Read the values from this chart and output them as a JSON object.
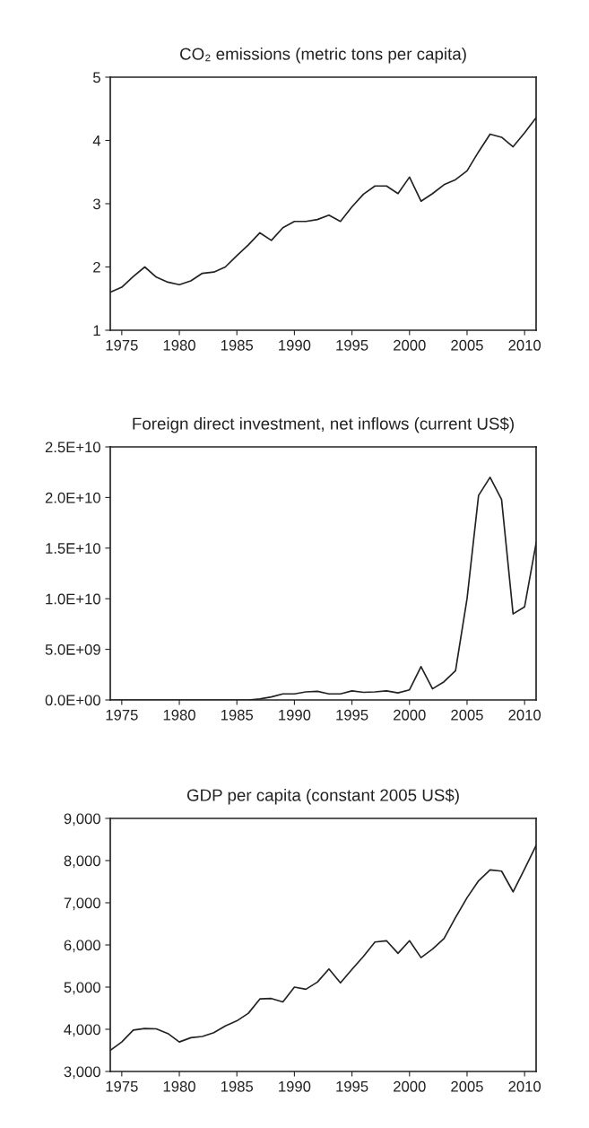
{
  "chart_data": [
    {
      "type": "line",
      "title": "CO₂ emissions (metric tons per capita)",
      "x": [
        1974,
        1975,
        1976,
        1977,
        1978,
        1979,
        1980,
        1981,
        1982,
        1983,
        1984,
        1985,
        1986,
        1987,
        1988,
        1989,
        1990,
        1991,
        1992,
        1993,
        1994,
        1995,
        1996,
        1997,
        1998,
        1999,
        2000,
        2001,
        2002,
        2003,
        2004,
        2005,
        2006,
        2007,
        2008,
        2009,
        2010,
        2011
      ],
      "series": [
        {
          "color": "#222222",
          "values": [
            1.6,
            1.68,
            1.85,
            2.0,
            1.84,
            1.76,
            1.72,
            1.78,
            1.9,
            1.92,
            2.0,
            2.18,
            2.35,
            2.54,
            2.42,
            2.62,
            2.72,
            2.72,
            2.75,
            2.82,
            2.72,
            2.95,
            3.15,
            3.28,
            3.28,
            3.16,
            3.42,
            3.04,
            3.16,
            3.3,
            3.38,
            3.52,
            3.82,
            4.1,
            4.05,
            3.9,
            4.12,
            4.36
          ]
        }
      ],
      "xlim": [
        1974,
        2011
      ],
      "xticks": [
        1975,
        1980,
        1985,
        1990,
        1995,
        2000,
        2005,
        2010
      ],
      "ylim": [
        1,
        5
      ],
      "yticks": [
        1,
        2,
        3,
        4,
        5
      ],
      "grid": false
    },
    {
      "type": "line",
      "title": "Foreign direct investment, net inflows (current US$)",
      "x": [
        1974,
        1975,
        1976,
        1977,
        1978,
        1979,
        1980,
        1981,
        1982,
        1983,
        1984,
        1985,
        1986,
        1987,
        1988,
        1989,
        1990,
        1991,
        1992,
        1993,
        1994,
        1995,
        1996,
        1997,
        1998,
        1999,
        2000,
        2001,
        2002,
        2003,
        2004,
        2005,
        2006,
        2007,
        2008,
        2009,
        2010,
        2011
      ],
      "series": [
        {
          "color": "#222222",
          "values": [
            0,
            0,
            0,
            0,
            0,
            0,
            0,
            0,
            0,
            0,
            0,
            0,
            0,
            100000000,
            300000000,
            600000000,
            600000000,
            800000000,
            850000000,
            600000000,
            600000000,
            900000000,
            750000000,
            800000000,
            900000000,
            700000000,
            1000000000,
            3300000000,
            1100000000,
            1800000000,
            2900000000,
            10000000000,
            20200000000,
            22000000000,
            19800000000,
            8500000000,
            9200000000,
            15500000000
          ]
        }
      ],
      "xlim": [
        1974,
        2011
      ],
      "xticks": [
        1975,
        1980,
        1985,
        1990,
        1995,
        2000,
        2005,
        2010
      ],
      "ylim": [
        0,
        25000000000
      ],
      "yticks": [
        {
          "value": 0,
          "label": "0.0E+00"
        },
        {
          "value": 5000000000,
          "label": "5.0E+09"
        },
        {
          "value": 10000000000,
          "label": "1.0E+10"
        },
        {
          "value": 15000000000,
          "label": "1.5E+10"
        },
        {
          "value": 20000000000,
          "label": "2.0E+10"
        },
        {
          "value": 25000000000,
          "label": "2.5E+10"
        }
      ],
      "grid": false
    },
    {
      "type": "line",
      "title": "GDP per capita (constant 2005 US$)",
      "x": [
        1974,
        1975,
        1976,
        1977,
        1978,
        1979,
        1980,
        1981,
        1982,
        1983,
        1984,
        1985,
        1986,
        1987,
        1988,
        1989,
        1990,
        1991,
        1992,
        1993,
        1994,
        1995,
        1996,
        1997,
        1998,
        1999,
        2000,
        2001,
        2002,
        2003,
        2004,
        2005,
        2006,
        2007,
        2008,
        2009,
        2010,
        2011
      ],
      "series": [
        {
          "color": "#222222",
          "values": [
            3500,
            3700,
            3980,
            4020,
            4010,
            3900,
            3700,
            3800,
            3830,
            3920,
            4080,
            4200,
            4380,
            4720,
            4730,
            4650,
            5000,
            4950,
            5120,
            5430,
            5100,
            5420,
            5730,
            6070,
            6100,
            5800,
            6100,
            5700,
            5900,
            6150,
            6650,
            7120,
            7520,
            7780,
            7750,
            7260,
            7800,
            8360
          ]
        }
      ],
      "xlim": [
        1974,
        2011
      ],
      "xticks": [
        1975,
        1980,
        1985,
        1990,
        1995,
        2000,
        2005,
        2010
      ],
      "ylim": [
        3000,
        9000
      ],
      "yticks": [
        {
          "value": 3000,
          "label": "3,000"
        },
        {
          "value": 4000,
          "label": "4,000"
        },
        {
          "value": 5000,
          "label": "5,000"
        },
        {
          "value": 6000,
          "label": "6,000"
        },
        {
          "value": 7000,
          "label": "7,000"
        },
        {
          "value": 8000,
          "label": "8,000"
        },
        {
          "value": 9000,
          "label": "9,000"
        }
      ],
      "grid": false
    }
  ]
}
